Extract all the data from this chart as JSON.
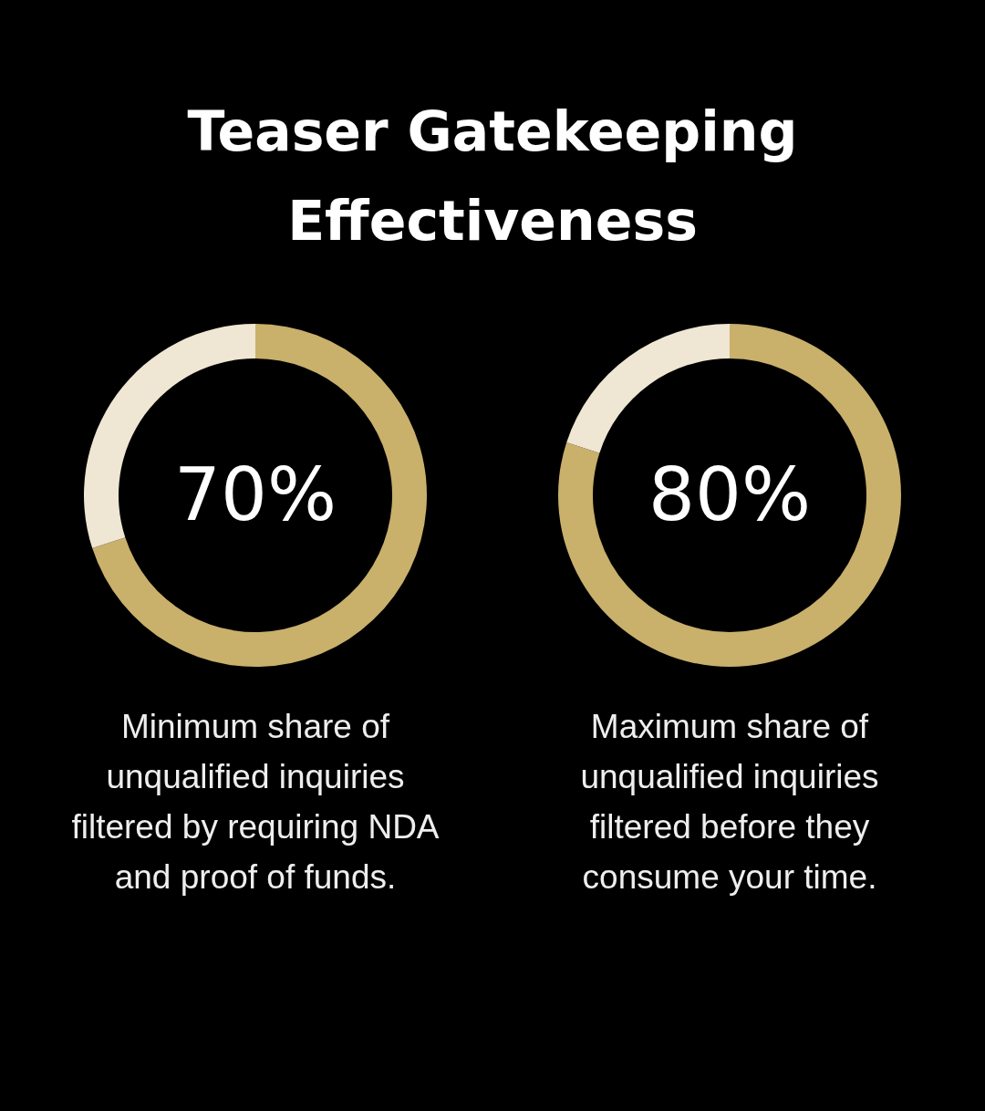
{
  "chart_data": [
    {
      "type": "donut",
      "title": "Teaser Gatekeeping Effectiveness",
      "categories": [
        null,
        null
      ],
      "values": [
        70,
        30
      ],
      "colors": [
        "#c9b06b",
        "#efe6d3"
      ],
      "value_labels": [
        "70%",
        null
      ],
      "annotations": [
        "Minimum share of unqualified inquiries filtered by requiring NDA and proof of funds."
      ]
    },
    {
      "type": "donut",
      "categories": [
        null,
        null
      ],
      "values": [
        80,
        20
      ],
      "colors": [
        "#c9b06b",
        "#efe6d3"
      ],
      "value_labels": [
        "80%",
        null
      ],
      "annotations": [
        "Maximum share of unqualified inquiries filtered before they consume your time."
      ]
    }
  ]
}
